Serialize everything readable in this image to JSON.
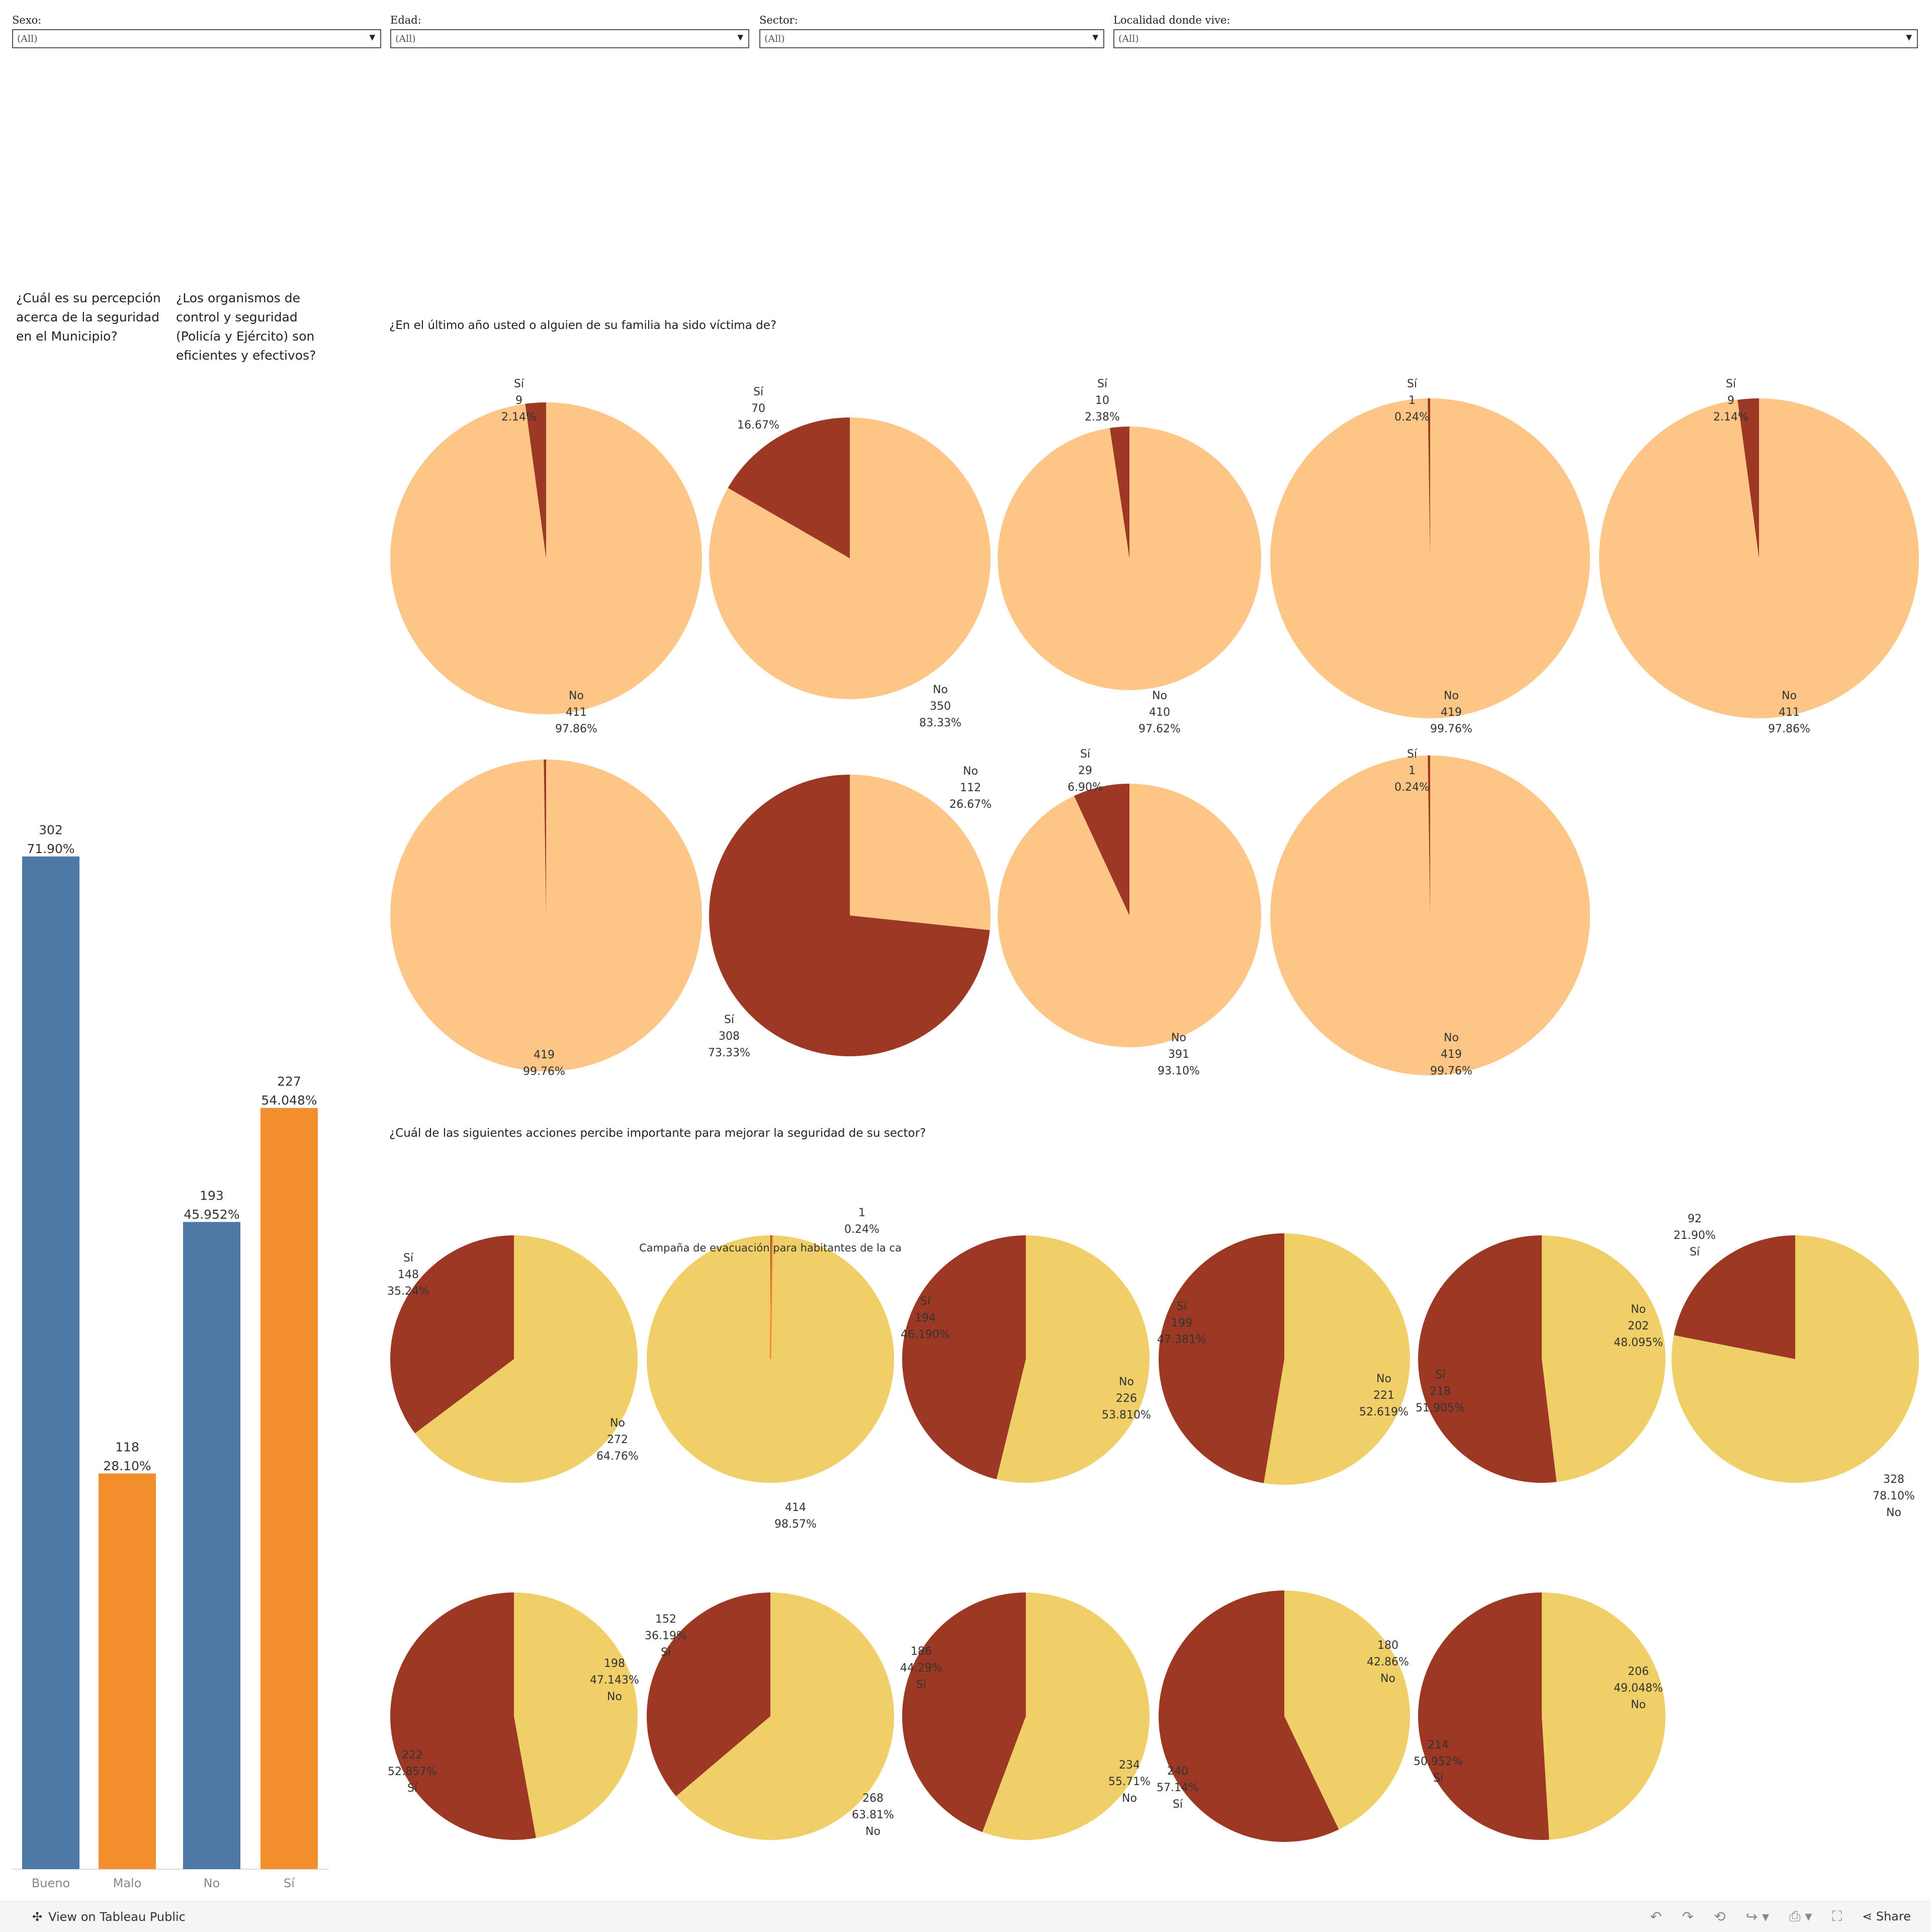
{
  "filters": [
    {
      "label": "Sexo:",
      "value": "(All)"
    },
    {
      "label": "Edad:",
      "value": "(All)"
    },
    {
      "label": "Sector:",
      "value": "(All)"
    },
    {
      "label": "Localidad donde vive:",
      "value": "(All)"
    }
  ],
  "questions": {
    "q1": [
      "¿Cuál es su percepción",
      "acerca de la seguridad",
      "en el Municipio?"
    ],
    "q2": [
      "¿Los organismos de",
      "control y seguridad",
      "(Policía y Ejército) son",
      "eficientes y efectivos?"
    ],
    "victim_title": "¿En el último año usted o alguien de su familia ha sido víctima de?",
    "actions_title": "¿Cuál de las siguientes acciones percibe importante para mejorar la seguridad de su sector?"
  },
  "colors": {
    "blue": "#4e79a7",
    "orange": "#f28e2b",
    "dark_red": "#9c3824",
    "light_orange": "#fdc586",
    "yellow": "#f1cf68"
  },
  "footer": {
    "link": "View on Tableau Public",
    "share": "Share"
  },
  "chart_data": [
    {
      "type": "bar",
      "title": "¿Cuál es su percepción acerca de la seguridad en el Municipio?",
      "categories": [
        "Bueno",
        "Malo"
      ],
      "values": [
        302,
        118
      ],
      "labels": [
        [
          "302",
          "71.90%"
        ],
        [
          "118",
          "28.10%"
        ]
      ],
      "ylim": [
        0,
        420
      ]
    },
    {
      "type": "bar",
      "title": "¿Los organismos de control y seguridad (Policía y Ejército) son eficientes y efectivos?",
      "categories": [
        "No",
        "Sí"
      ],
      "values": [
        193,
        227
      ],
      "labels": [
        [
          "193",
          "45.952%"
        ],
        [
          "227",
          "54.048%"
        ]
      ],
      "ylim": [
        0,
        420
      ]
    },
    {
      "type": "pie",
      "title": "¿En el último año usted o alguien de su familia ha sido víctima de?",
      "pies": [
        {
          "si": 9,
          "no": 411,
          "labels": {
            "si": [
              "Sí",
              "9",
              "2.14%"
            ],
            "no": [
              "No",
              "411",
              "97.86%"
            ]
          }
        },
        {
          "si": 70,
          "no": 350,
          "labels": {
            "si": [
              "Sí",
              "70",
              "16.67%"
            ],
            "no": [
              "No",
              "350",
              "83.33%"
            ]
          }
        },
        {
          "si": 10,
          "no": 410,
          "labels": {
            "si": [
              "Sí",
              "10",
              "2.38%"
            ],
            "no": [
              "No",
              "410",
              "97.62%"
            ]
          }
        },
        {
          "si": 1,
          "no": 419,
          "labels": {
            "si": [
              "Sí",
              "1",
              "0.24%"
            ],
            "no": [
              "No",
              "419",
              "99.76%"
            ]
          }
        },
        {
          "si": 9,
          "no": 411,
          "labels": {
            "si": [
              "Sí",
              "9",
              "2.14%"
            ],
            "no": [
              "No",
              "411",
              "97.86%"
            ]
          }
        },
        {
          "si": 1,
          "no": 419,
          "labels": {
            "no": [
              "419",
              "99.76%"
            ]
          }
        },
        {
          "si": 308,
          "no": 112,
          "labels": {
            "si": [
              "Sí",
              "308",
              "73.33%"
            ],
            "no": [
              "No",
              "112",
              "26.67%"
            ]
          }
        },
        {
          "si": 29,
          "no": 391,
          "labels": {
            "si": [
              "Sí",
              "29",
              "6.90%"
            ],
            "no": [
              "No",
              "391",
              "93.10%"
            ]
          }
        },
        {
          "si": 1,
          "no": 419,
          "labels": {
            "si": [
              "Sí",
              "1",
              "0.24%"
            ],
            "no": [
              "No",
              "419",
              "99.76%"
            ]
          }
        }
      ]
    },
    {
      "type": "pie",
      "title": "¿Cuál de las siguientes acciones percibe importante para mejorar la seguridad de su sector?",
      "pies": [
        {
          "si": 148,
          "no": 272,
          "labels": {
            "si": [
              "Sí",
              "148",
              "35.24%"
            ],
            "no": [
              "No",
              "272",
              "64.76%"
            ]
          }
        },
        {
          "si": 1,
          "no": 414,
          "extra": "Campaña de evacuación para habitantes de la ca",
          "labels": {
            "si": [
              "1",
              "0.24%"
            ],
            "no": [
              "414",
              "98.57%"
            ]
          }
        },
        {
          "si": 194,
          "no": 226,
          "labels": {
            "si": [
              "Sí",
              "194",
              "46.190%"
            ],
            "no": [
              "No",
              "226",
              "53.810%"
            ]
          }
        },
        {
          "si": 199,
          "no": 221,
          "labels": {
            "si": [
              "Sí",
              "199",
              "47.381%"
            ],
            "no": [
              "No",
              "221",
              "52.619%"
            ]
          }
        },
        {
          "si": 218,
          "no": 202,
          "labels": {
            "si": [
              "Sí",
              "218",
              "51.905%"
            ],
            "no": [
              "No",
              "202",
              "48.095%"
            ]
          }
        },
        {
          "si": 92,
          "no": 328,
          "labels": {
            "si": [
              "92",
              "21.90%",
              "Sí"
            ],
            "no": [
              "328",
              "78.10%",
              "No"
            ]
          }
        },
        {
          "si": 222,
          "no": 198,
          "labels": {
            "si": [
              "222",
              "52.857%",
              "Sí"
            ],
            "no": [
              "198",
              "47.143%",
              "No"
            ]
          }
        },
        {
          "si": 152,
          "no": 268,
          "labels": {
            "si": [
              "152",
              "36.19%",
              "Sí"
            ],
            "no": [
              "268",
              "63.81%",
              "No"
            ]
          }
        },
        {
          "si": 186,
          "no": 234,
          "labels": {
            "si": [
              "186",
              "44.29%",
              "Sí"
            ],
            "no": [
              "234",
              "55.71%",
              "No"
            ]
          }
        },
        {
          "si": 240,
          "no": 180,
          "labels": {
            "si": [
              "240",
              "57.14%",
              "Sí"
            ],
            "no": [
              "180",
              "42.86%",
              "No"
            ]
          }
        },
        {
          "si": 214,
          "no": 206,
          "labels": {
            "si": [
              "214",
              "50.952%",
              "Sí"
            ],
            "no": [
              "206",
              "49.048%",
              "No"
            ]
          }
        }
      ]
    }
  ]
}
